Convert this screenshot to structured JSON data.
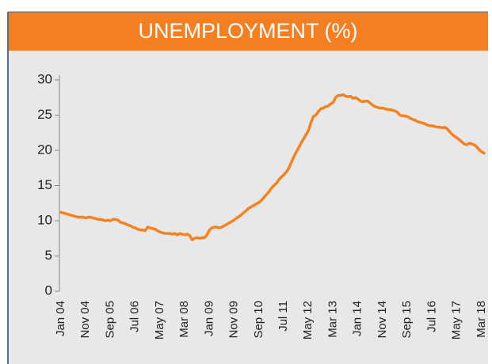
{
  "chart_data": {
    "type": "line",
    "title": "UNEMPLOYMENT (%)",
    "categories": [
      "Jan 04",
      null,
      null,
      null,
      null,
      null,
      null,
      null,
      null,
      null,
      "Nov 04",
      null,
      null,
      null,
      null,
      null,
      null,
      null,
      null,
      null,
      "Sep 05",
      null,
      null,
      null,
      null,
      null,
      null,
      null,
      null,
      null,
      "Jul 06",
      null,
      null,
      null,
      null,
      null,
      null,
      null,
      null,
      null,
      "May 07",
      null,
      null,
      null,
      null,
      null,
      null,
      null,
      null,
      null,
      "Mar 08",
      null,
      null,
      null,
      null,
      null,
      null,
      null,
      null,
      null,
      "Jan 09",
      null,
      null,
      null,
      null,
      null,
      null,
      null,
      null,
      null,
      "Nov 09",
      null,
      null,
      null,
      null,
      null,
      null,
      null,
      null,
      null,
      "Sep 10",
      null,
      null,
      null,
      null,
      null,
      null,
      null,
      null,
      null,
      "Jul 11",
      null,
      null,
      null,
      null,
      null,
      null,
      null,
      null,
      null,
      "May 12",
      null,
      null,
      null,
      null,
      null,
      null,
      null,
      null,
      null,
      "Mar 13",
      null,
      null,
      null,
      null,
      null,
      null,
      null,
      null,
      null,
      "Jan 14",
      null,
      null,
      null,
      null,
      null,
      null,
      null,
      null,
      null,
      "Nov 14",
      null,
      null,
      null,
      null,
      null,
      null,
      null,
      null,
      null,
      "Sep 15",
      null,
      null,
      null,
      null,
      null,
      null,
      null,
      null,
      null,
      "Jul 16",
      null,
      null,
      null,
      null,
      null,
      null,
      null,
      null,
      null,
      "May 17",
      null,
      null,
      null,
      null,
      null,
      null,
      null,
      null,
      null,
      "Mar 18",
      null
    ],
    "series": [
      {
        "color": "#f58220",
        "values": [
          11.2,
          11.1,
          11.0,
          10.9,
          10.8,
          10.7,
          10.6,
          10.5,
          10.5,
          10.5,
          10.4,
          10.5,
          10.5,
          10.4,
          10.3,
          10.2,
          10.2,
          10.1,
          10.0,
          10.1,
          10.0,
          10.2,
          10.2,
          10.1,
          9.8,
          9.7,
          9.6,
          9.4,
          9.3,
          9.1,
          9.0,
          8.8,
          8.7,
          8.7,
          8.6,
          9.1,
          9.0,
          8.9,
          8.8,
          8.6,
          8.4,
          8.3,
          8.2,
          8.2,
          8.2,
          8.1,
          8.2,
          8.0,
          8.2,
          8.1,
          8.0,
          8.1,
          7.9,
          7.3,
          7.5,
          7.6,
          7.5,
          7.6,
          7.6,
          8.0,
          8.7,
          9.0,
          9.1,
          9.1,
          9.0,
          9.1,
          9.3,
          9.5,
          9.7,
          9.9,
          10.1,
          10.4,
          10.6,
          10.9,
          11.2,
          11.5,
          11.8,
          12.0,
          12.2,
          12.4,
          12.6,
          12.9,
          13.3,
          13.7,
          14.1,
          14.6,
          15.0,
          15.3,
          15.8,
          16.2,
          16.5,
          16.9,
          17.4,
          18.2,
          19.0,
          19.7,
          20.3,
          21.0,
          21.6,
          22.2,
          22.8,
          23.9,
          24.8,
          25.0,
          25.5,
          25.9,
          26.0,
          26.2,
          26.3,
          26.6,
          26.8,
          27.5,
          27.8,
          27.8,
          27.9,
          27.7,
          27.6,
          27.7,
          27.4,
          27.5,
          27.3,
          27.0,
          26.9,
          27.0,
          27.0,
          26.7,
          26.4,
          26.2,
          26.1,
          26.0,
          26.0,
          25.9,
          25.8,
          25.8,
          25.7,
          25.6,
          25.4,
          25.0,
          24.9,
          24.9,
          24.8,
          24.6,
          24.4,
          24.3,
          24.1,
          24.0,
          23.9,
          23.8,
          23.6,
          23.5,
          23.5,
          23.4,
          23.3,
          23.3,
          23.2,
          23.3,
          23.1,
          22.7,
          22.3,
          22.0,
          21.8,
          21.5,
          21.2,
          20.9,
          20.8,
          21.0,
          20.9,
          20.8,
          20.5,
          20.1,
          19.8,
          19.6
        ]
      }
    ],
    "ylim": [
      0,
      30
    ],
    "yticks": [
      0,
      5,
      10,
      15,
      20,
      25,
      30
    ]
  }
}
